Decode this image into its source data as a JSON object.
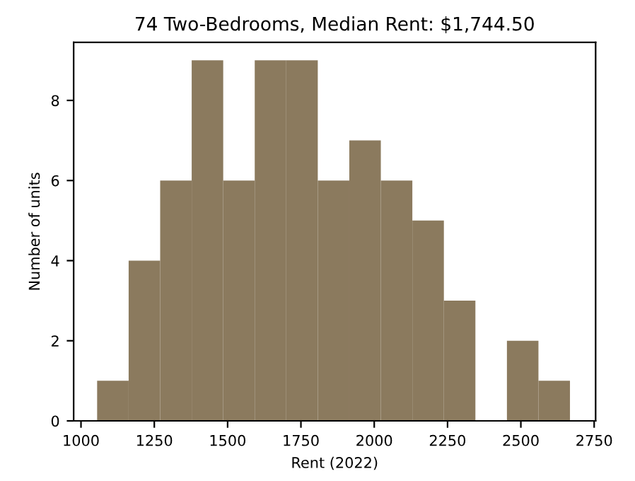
{
  "chart_data": {
    "type": "histogram",
    "title": "74 Two-Bedrooms, Median Rent: $1,744.50",
    "xlabel": "Rent (2022)",
    "ylabel": "Number of units",
    "bins": [
      1055,
      1162.5,
      1270,
      1377.5,
      1485,
      1592.5,
      1700,
      1807.5,
      1915,
      2022.5,
      2130,
      2237.5,
      2345,
      2452.5,
      2560,
      2667.5
    ],
    "values": [
      1,
      4,
      6,
      9,
      6,
      9,
      9,
      6,
      7,
      6,
      5,
      3,
      0,
      2,
      1
    ],
    "color": "#8b7a5e",
    "xlim": [
      975,
      2755
    ],
    "xticks": [
      1000,
      1250,
      1500,
      1750,
      2000,
      2250,
      2500,
      2750
    ],
    "ylim": [
      0,
      9.45
    ],
    "yticks": [
      0,
      2,
      4,
      6,
      8
    ],
    "grid": false,
    "legend": false
  }
}
